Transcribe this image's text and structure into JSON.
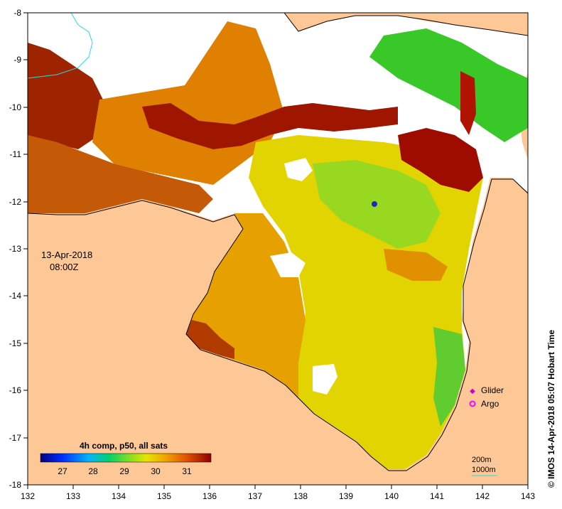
{
  "map": {
    "date": "13-Apr-2018",
    "time": "08:00Z",
    "x_labels": [
      "132",
      "133",
      "134",
      "135",
      "136",
      "137",
      "138",
      "139",
      "140",
      "141",
      "142",
      "143"
    ],
    "y_labels": [
      "-8",
      "-9",
      "-10",
      "-11",
      "-12",
      "-13",
      "-14",
      "-15",
      "-16",
      "-17",
      "-18"
    ],
    "credit": "© IMOS 14-Apr-2018 05:07 Hobart Time"
  },
  "legend": {
    "glider": "Glider",
    "argo": "Argo",
    "glider_color": "#cc00cc",
    "argo_color": "#ff00ff"
  },
  "colorbar": {
    "title": "4h comp, p50, all sats",
    "ticks": [
      "27",
      "28",
      "29",
      "30",
      "31"
    ]
  },
  "depth": {
    "label_200": "200m",
    "label_1000": "1000m"
  },
  "colors": {
    "land": "#fdc896",
    "hot": "#9e0c00",
    "orange": "#e07a00",
    "yellow": "#e6d400",
    "green": "#30c020",
    "cyan": "#22ddee"
  }
}
